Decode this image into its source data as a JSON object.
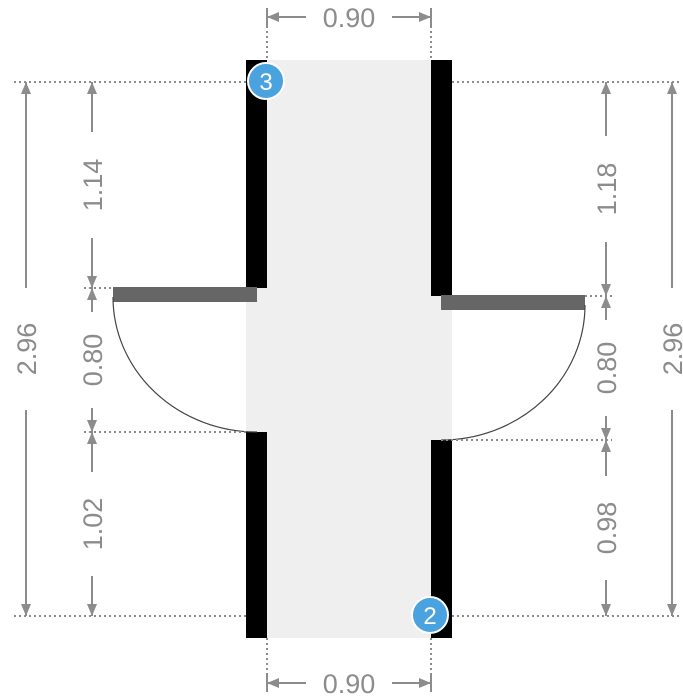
{
  "dimensions": {
    "top_width": "0.90",
    "bottom_width": "0.90",
    "left_total": "2.96",
    "right_total": "2.96",
    "left_upper": "1.14",
    "left_door": "0.80",
    "left_lower": "1.02",
    "right_upper": "1.18",
    "right_door": "0.80",
    "right_lower": "0.98"
  },
  "markers": {
    "top_left": "3",
    "bottom_right": "2"
  },
  "colors": {
    "dimension": "#8c8c8c",
    "wall": "#000000",
    "door_leaf": "#666666",
    "floor": "#efefef",
    "marker": "#4aa3df"
  }
}
